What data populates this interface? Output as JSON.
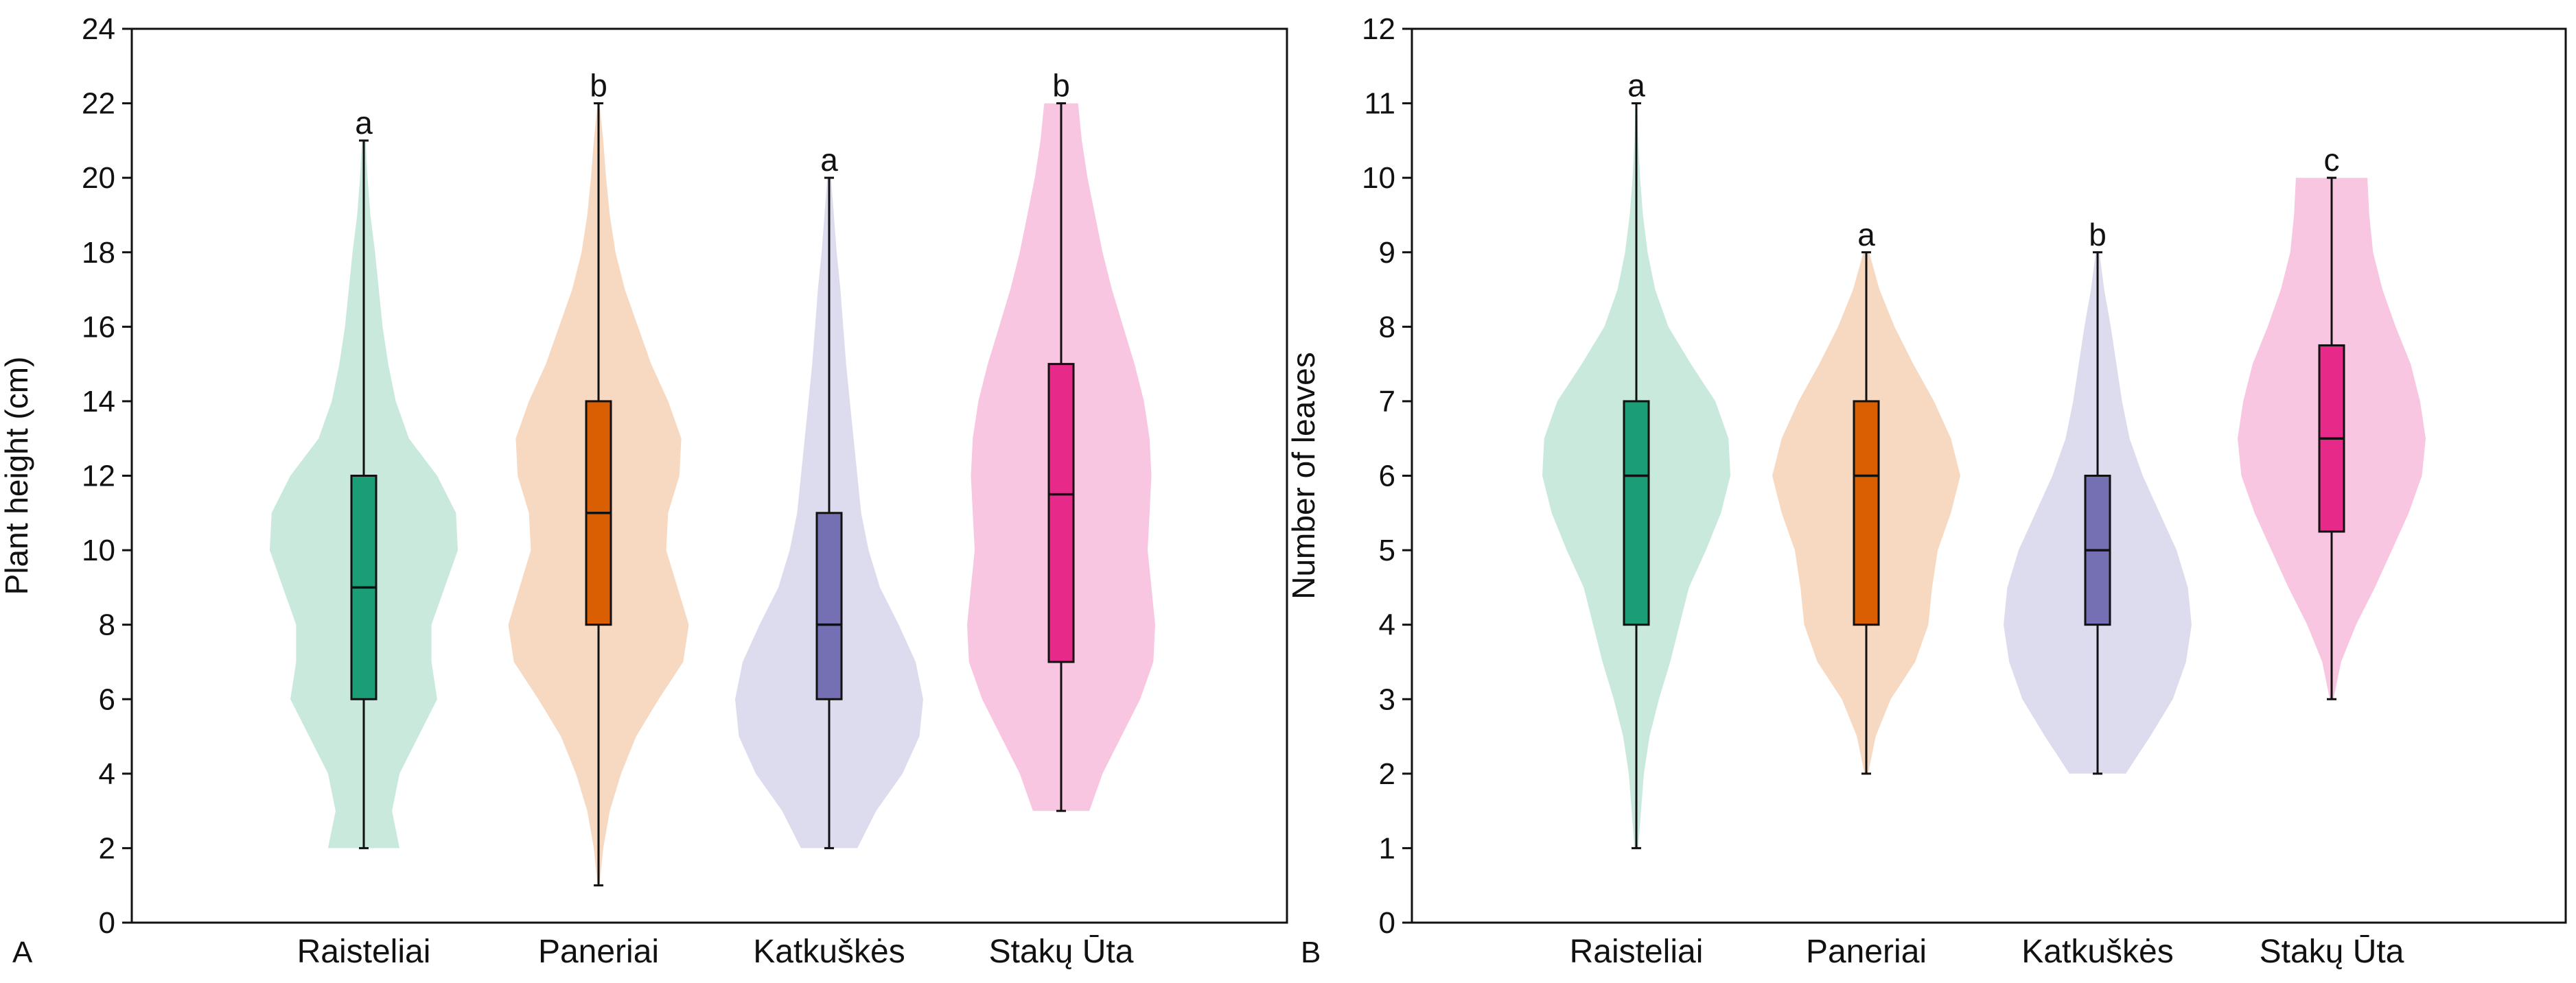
{
  "chart_data": [
    {
      "type": "violin",
      "panel": "A",
      "title": "",
      "xlabel": "",
      "ylabel": "Plant height (cm)",
      "ylim": [
        0,
        24
      ],
      "yticks": [
        0,
        2,
        4,
        6,
        8,
        10,
        12,
        14,
        16,
        18,
        20,
        22,
        24
      ],
      "grid": false,
      "categories": [
        "Raisteliai",
        "Paneriai",
        "Katkuškės",
        "Stakų Ūta"
      ],
      "colors": {
        "fill": [
          "#c9e9dc",
          "#f7d9c2",
          "#dcdcee",
          "#f8c6e0"
        ],
        "box": [
          "#1b9e77",
          "#d95f02",
          "#7570b3",
          "#e7298a"
        ]
      },
      "box": [
        {
          "min": 2,
          "q1": 6,
          "median": 9,
          "q3": 12,
          "max": 21
        },
        {
          "min": 1,
          "q1": 8,
          "median": 11,
          "q3": 14,
          "max": 22
        },
        {
          "min": 2,
          "q1": 6,
          "median": 8,
          "q3": 11,
          "max": 20
        },
        {
          "min": 3,
          "q1": 7,
          "median": 11.5,
          "q3": 15,
          "max": 22
        }
      ],
      "density": [
        [
          [
            2,
            0.38
          ],
          [
            3,
            0.3
          ],
          [
            4,
            0.38
          ],
          [
            5,
            0.58
          ],
          [
            6,
            0.78
          ],
          [
            7,
            0.72
          ],
          [
            8,
            0.72
          ],
          [
            9,
            0.86
          ],
          [
            10,
            1.0
          ],
          [
            11,
            0.98
          ],
          [
            12,
            0.78
          ],
          [
            13,
            0.48
          ],
          [
            14,
            0.34
          ],
          [
            15,
            0.26
          ],
          [
            16,
            0.2
          ],
          [
            17,
            0.16
          ],
          [
            18,
            0.12
          ],
          [
            19,
            0.07
          ],
          [
            20,
            0.04
          ],
          [
            21,
            0.02
          ]
        ],
        [
          [
            1,
            0.01
          ],
          [
            2,
            0.05
          ],
          [
            3,
            0.12
          ],
          [
            4,
            0.24
          ],
          [
            5,
            0.4
          ],
          [
            6,
            0.64
          ],
          [
            7,
            0.9
          ],
          [
            8,
            0.96
          ],
          [
            9,
            0.84
          ],
          [
            10,
            0.72
          ],
          [
            11,
            0.74
          ],
          [
            12,
            0.86
          ],
          [
            13,
            0.88
          ],
          [
            14,
            0.74
          ],
          [
            15,
            0.56
          ],
          [
            16,
            0.42
          ],
          [
            17,
            0.28
          ],
          [
            18,
            0.18
          ],
          [
            19,
            0.12
          ],
          [
            20,
            0.08
          ],
          [
            21,
            0.05
          ],
          [
            22,
            0.01
          ]
        ],
        [
          [
            2,
            0.3
          ],
          [
            3,
            0.5
          ],
          [
            4,
            0.78
          ],
          [
            5,
            0.96
          ],
          [
            6,
            1.0
          ],
          [
            7,
            0.92
          ],
          [
            8,
            0.74
          ],
          [
            9,
            0.54
          ],
          [
            10,
            0.42
          ],
          [
            11,
            0.34
          ],
          [
            12,
            0.3
          ],
          [
            13,
            0.26
          ],
          [
            14,
            0.22
          ],
          [
            15,
            0.18
          ],
          [
            16,
            0.15
          ],
          [
            17,
            0.12
          ],
          [
            18,
            0.08
          ],
          [
            19,
            0.05
          ],
          [
            20,
            0.02
          ]
        ],
        [
          [
            3,
            0.3
          ],
          [
            4,
            0.44
          ],
          [
            5,
            0.64
          ],
          [
            6,
            0.84
          ],
          [
            7,
            0.98
          ],
          [
            8,
            1.0
          ],
          [
            9,
            0.96
          ],
          [
            10,
            0.92
          ],
          [
            11,
            0.94
          ],
          [
            12,
            0.96
          ],
          [
            13,
            0.94
          ],
          [
            14,
            0.88
          ],
          [
            15,
            0.78
          ],
          [
            16,
            0.66
          ],
          [
            17,
            0.54
          ],
          [
            18,
            0.44
          ],
          [
            19,
            0.36
          ],
          [
            20,
            0.28
          ],
          [
            21,
            0.22
          ],
          [
            22,
            0.18
          ]
        ]
      ],
      "significance_letters": [
        "a",
        "b",
        "a",
        "b"
      ],
      "letter_y": [
        21,
        22,
        20,
        22
      ]
    },
    {
      "type": "violin",
      "panel": "B",
      "title": "",
      "xlabel": "",
      "ylabel": "Number of leaves",
      "ylim": [
        0,
        12
      ],
      "yticks": [
        0,
        1,
        2,
        3,
        4,
        5,
        6,
        7,
        8,
        9,
        10,
        11,
        12
      ],
      "grid": false,
      "categories": [
        "Raisteliai",
        "Paneriai",
        "Katkuškės",
        "Stakų Ūta"
      ],
      "colors": {
        "fill": [
          "#c9e9dc",
          "#f7d9c2",
          "#dcdcee",
          "#f8c6e0"
        ],
        "box": [
          "#1b9e77",
          "#d95f02",
          "#7570b3",
          "#e7298a"
        ]
      },
      "box": [
        {
          "min": 1,
          "q1": 4,
          "median": 6,
          "q3": 7,
          "max": 11
        },
        {
          "min": 2,
          "q1": 4,
          "median": 6,
          "q3": 7,
          "max": 9
        },
        {
          "min": 2,
          "q1": 4,
          "median": 5,
          "q3": 6,
          "max": 9
        },
        {
          "min": 3,
          "q1": 5.25,
          "median": 6.5,
          "q3": 7.75,
          "max": 10
        }
      ],
      "density": [
        [
          [
            1,
            0.02
          ],
          [
            1.5,
            0.05
          ],
          [
            2,
            0.08
          ],
          [
            2.5,
            0.14
          ],
          [
            3,
            0.24
          ],
          [
            3.5,
            0.36
          ],
          [
            4,
            0.46
          ],
          [
            4.5,
            0.56
          ],
          [
            5,
            0.74
          ],
          [
            5.5,
            0.9
          ],
          [
            6,
            1.0
          ],
          [
            6.5,
            0.98
          ],
          [
            7,
            0.84
          ],
          [
            7.5,
            0.58
          ],
          [
            8,
            0.34
          ],
          [
            8.5,
            0.2
          ],
          [
            9,
            0.12
          ],
          [
            9.5,
            0.07
          ],
          [
            10,
            0.04
          ],
          [
            10.5,
            0.02
          ],
          [
            11,
            0.01
          ]
        ],
        [
          [
            2,
            0.02
          ],
          [
            2.5,
            0.1
          ],
          [
            3,
            0.26
          ],
          [
            3.5,
            0.52
          ],
          [
            4,
            0.66
          ],
          [
            4.5,
            0.7
          ],
          [
            5,
            0.76
          ],
          [
            5.5,
            0.9
          ],
          [
            6,
            1.0
          ],
          [
            6.5,
            0.9
          ],
          [
            7,
            0.72
          ],
          [
            7.5,
            0.5
          ],
          [
            8,
            0.3
          ],
          [
            8.5,
            0.14
          ],
          [
            9,
            0.03
          ]
        ],
        [
          [
            2,
            0.3
          ],
          [
            2.5,
            0.56
          ],
          [
            3,
            0.8
          ],
          [
            3.5,
            0.94
          ],
          [
            4,
            1.0
          ],
          [
            4.5,
            0.96
          ],
          [
            5,
            0.84
          ],
          [
            5.5,
            0.66
          ],
          [
            6,
            0.48
          ],
          [
            6.5,
            0.34
          ],
          [
            7,
            0.26
          ],
          [
            7.5,
            0.2
          ],
          [
            8,
            0.14
          ],
          [
            8.5,
            0.07
          ],
          [
            9,
            0.02
          ]
        ],
        [
          [
            3,
            0.02
          ],
          [
            3.5,
            0.1
          ],
          [
            4,
            0.26
          ],
          [
            4.5,
            0.46
          ],
          [
            5,
            0.64
          ],
          [
            5.5,
            0.82
          ],
          [
            6,
            0.96
          ],
          [
            6.5,
            1.0
          ],
          [
            7,
            0.94
          ],
          [
            7.5,
            0.84
          ],
          [
            8,
            0.68
          ],
          [
            8.5,
            0.54
          ],
          [
            9,
            0.44
          ],
          [
            9.5,
            0.4
          ],
          [
            10,
            0.38
          ]
        ]
      ],
      "significance_letters": [
        "a",
        "a",
        "b",
        "c"
      ],
      "letter_y": [
        11,
        9,
        9,
        10
      ]
    }
  ]
}
